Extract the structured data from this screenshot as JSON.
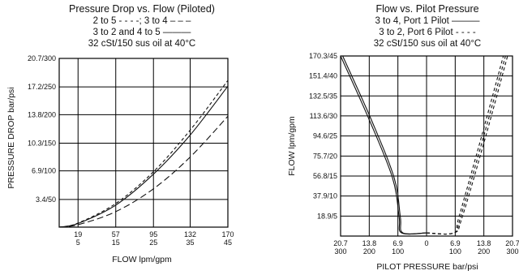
{
  "chart_data": [
    {
      "type": "line",
      "title": "Pressure Drop vs. Flow (Piloted)",
      "legend_lines": [
        "2 to 5 - - - -; 3 to 4 – – –",
        "3 to 2 and 4 to 5 ———",
        "32 cSt/150 sus oil at 40°C"
      ],
      "xlabel": "FLOW lpm/gpm",
      "ylabel": "PRESSURE DROP bar/psi",
      "x_ticks": [
        {
          "value": 19,
          "top": "19",
          "bottom": "5"
        },
        {
          "value": 57,
          "top": "57",
          "bottom": "15"
        },
        {
          "value": 95,
          "top": "95",
          "bottom": "25"
        },
        {
          "value": 132,
          "top": "132",
          "bottom": "35"
        },
        {
          "value": 170,
          "top": "170",
          "bottom": "45"
        }
      ],
      "y_ticks": [
        {
          "value": 3.4,
          "label": "3.4/50"
        },
        {
          "value": 6.9,
          "label": "6.9/100"
        },
        {
          "value": 10.3,
          "label": "10.3/150"
        },
        {
          "value": 13.8,
          "label": "13.8/200"
        },
        {
          "value": 17.2,
          "label": "17.2/250"
        },
        {
          "value": 20.7,
          "label": "20.7/300"
        }
      ],
      "xlim": [
        0,
        170
      ],
      "ylim": [
        0,
        20.7
      ],
      "grid": true,
      "series": [
        {
          "style": "short-dash",
          "x": [
            0,
            19,
            57,
            95,
            132,
            170
          ],
          "y": [
            0,
            0.5,
            2.9,
            6.8,
            11.9,
            18.0
          ]
        },
        {
          "style": "solid",
          "x": [
            0,
            19,
            57,
            95,
            132,
            170
          ],
          "y": [
            0,
            0.45,
            2.7,
            6.5,
            11.3,
            17.3
          ]
        },
        {
          "style": "long-dash",
          "x": [
            0,
            19,
            57,
            95,
            132,
            170
          ],
          "y": [
            0,
            0.3,
            1.9,
            4.7,
            8.6,
            13.6
          ]
        }
      ]
    },
    {
      "type": "line",
      "title": "Flow vs. Pilot Pressure",
      "legend_lines": [
        "3 to 4, Port 1 Pilot ———",
        "3 to 2, Port 6 Pilot - - - -",
        "32 cSt/150 sus oil at 40°C"
      ],
      "xlabel": "PILOT PRESSURE bar/psi",
      "ylabel": "FLOW lpm/gpm",
      "x_ticks": [
        {
          "value": -20.7,
          "top": "20.7",
          "bottom": "300"
        },
        {
          "value": -13.8,
          "top": "13.8",
          "bottom": "200"
        },
        {
          "value": -6.9,
          "top": "6.9",
          "bottom": "100"
        },
        {
          "value": 0,
          "top": "0",
          "bottom": ""
        },
        {
          "value": 6.9,
          "top": "6.9",
          "bottom": "100"
        },
        {
          "value": 13.8,
          "top": "13.8",
          "bottom": "200"
        },
        {
          "value": 20.7,
          "top": "20.7",
          "bottom": "300"
        }
      ],
      "y_ticks": [
        {
          "value": 18.9,
          "label": "18.9/5"
        },
        {
          "value": 37.9,
          "label": "37.9/10"
        },
        {
          "value": 56.8,
          "label": "56.8/15"
        },
        {
          "value": 75.7,
          "label": "75.7/20"
        },
        {
          "value": 94.6,
          "label": "94.6/25"
        },
        {
          "value": 113.6,
          "label": "113.6/30"
        },
        {
          "value": 132.5,
          "label": "132.5/35"
        },
        {
          "value": 151.4,
          "label": "151.4/40"
        },
        {
          "value": 170.3,
          "label": "170.3/45"
        }
      ],
      "xlim": [
        -20.7,
        20.7
      ],
      "ylim": [
        0,
        170.3
      ],
      "grid": true,
      "series": [
        {
          "style": "solid",
          "x": [
            -20.7,
            -13.8,
            -8.2,
            -6.6,
            -6.0,
            0
          ],
          "y": [
            170.3,
            110,
            55,
            18,
            3,
            3
          ]
        },
        {
          "style": "solid",
          "x": [
            -20.2,
            -13.3,
            -7.8,
            -6.3,
            -5.7,
            0
          ],
          "y": [
            170.3,
            110,
            55,
            18,
            3,
            3
          ]
        },
        {
          "style": "short-dash",
          "x": [
            0,
            6.6,
            7.8,
            13.3,
            18.5
          ],
          "y": [
            3,
            3,
            18,
            95,
            170.3
          ]
        },
        {
          "style": "short-dash",
          "x": [
            0,
            6.6,
            8.2,
            13.8,
            19.0
          ],
          "y": [
            3,
            3,
            18,
            95,
            170.3
          ]
        },
        {
          "style": "short-dash",
          "x": [
            0,
            6.6,
            8.6,
            14.3,
            19.5
          ],
          "y": [
            3,
            3,
            18,
            95,
            170.3
          ]
        }
      ]
    }
  ]
}
